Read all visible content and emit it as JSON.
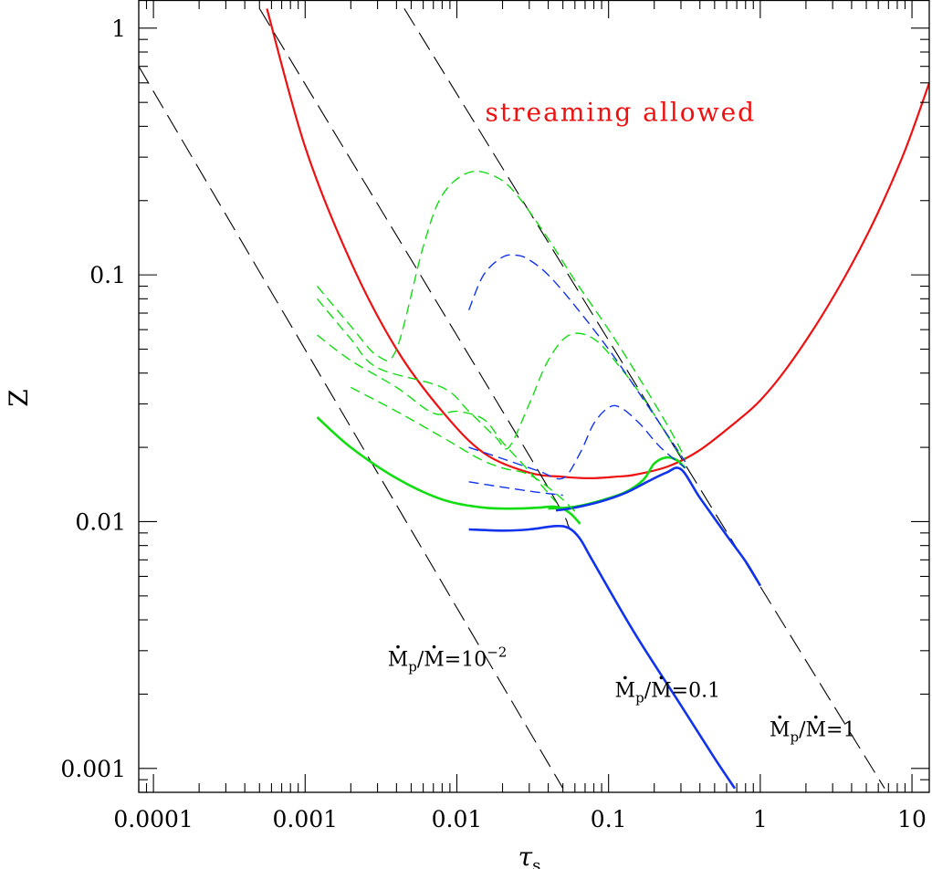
{
  "chart_data": {
    "type": "line",
    "title": "",
    "xlabel": "τ",
    "xlabel_sub": "s",
    "ylabel": "Z",
    "xscale": "log",
    "yscale": "log",
    "xlim": [
      8e-05,
      13
    ],
    "ylim": [
      0.0008,
      1.3
    ],
    "x_ticks": [
      0.0001,
      0.001,
      0.01,
      0.1,
      1,
      10
    ],
    "x_tick_labels": [
      "0.0001",
      "0.001",
      "0.01",
      "0.1",
      "1",
      "10"
    ],
    "y_ticks": [
      0.001,
      0.01,
      0.1,
      1
    ],
    "y_tick_labels": [
      "0.001",
      "0.01",
      "0.1",
      "1"
    ],
    "region_label": {
      "text": "streaming allowed",
      "x": 0.12,
      "y": 0.42,
      "color": "#ee1111"
    },
    "annotations": [
      {
        "id": "1e-2",
        "x": 0.0035,
        "y": 0.0026,
        "text": "=10",
        "sup": "−2",
        "p": "p"
      },
      {
        "id": "0-1",
        "x": 0.11,
        "y": 0.00195,
        "text": "=0.1",
        "sup": "",
        "p": "p"
      },
      {
        "id": "1",
        "x": 1.15,
        "y": 0.00135,
        "text": "=1",
        "sup": "",
        "p": "p"
      }
    ],
    "series": [
      {
        "name": "streaming-threshold",
        "color": "#ee1111",
        "style": "solid",
        "width": 2.2,
        "x": [
          0.00056,
          0.001,
          0.002,
          0.004,
          0.008,
          0.015,
          0.03,
          0.05,
          0.075,
          0.11,
          0.15,
          0.25,
          0.4,
          0.7,
          1,
          1.5,
          2.5,
          4,
          6,
          9,
          13
        ],
        "y": [
          1.2,
          0.33,
          0.113,
          0.05,
          0.028,
          0.019,
          0.0158,
          0.0152,
          0.015,
          0.0152,
          0.0155,
          0.0168,
          0.0195,
          0.0255,
          0.031,
          0.042,
          0.067,
          0.11,
          0.18,
          0.32,
          0.6
        ]
      },
      {
        "name": "Mp/M=1e-2-line",
        "color": "#000000",
        "style": "dash",
        "width": 1.1,
        "x": [
          8e-05,
          0.05
        ],
        "y": [
          0.7,
          0.00083
        ]
      },
      {
        "name": "Mp/M=0.1-line",
        "color": "#000000",
        "style": "dash",
        "width": 1.1,
        "x": [
          0.0005,
          0.03,
          0.055
        ],
        "y": [
          1.2,
          0.0185,
          0.0095
        ]
      },
      {
        "name": "Mp/M=1-line",
        "color": "#000000",
        "style": "dash",
        "width": 1.1,
        "x": [
          0.0045,
          6.6
        ],
        "y": [
          1.2,
          0.00083
        ]
      },
      {
        "name": "green-solid-low",
        "color": "#11dd11",
        "style": "solid",
        "width": 2.6,
        "x": [
          0.0012,
          0.002,
          0.004,
          0.008,
          0.015,
          0.025,
          0.035,
          0.045,
          0.055,
          0.065
        ],
        "y": [
          0.0265,
          0.02,
          0.015,
          0.0123,
          0.0114,
          0.0113,
          0.0114,
          0.0115,
          0.0109,
          0.0098
        ]
      },
      {
        "name": "green-solid-high",
        "color": "#11dd11",
        "style": "solid",
        "width": 2.6,
        "x": [
          0.04,
          0.06,
          0.09,
          0.13,
          0.17,
          0.2,
          0.24,
          0.28,
          0.32
        ],
        "y": [
          0.0113,
          0.0115,
          0.0122,
          0.0132,
          0.0148,
          0.0172,
          0.0182,
          0.0178,
          0.0165
        ]
      },
      {
        "name": "blue-solid-low",
        "color": "#1133ee",
        "style": "solid",
        "width": 2.6,
        "x": [
          0.012,
          0.02,
          0.03,
          0.045,
          0.055,
          0.065,
          0.08,
          0.15,
          0.3,
          0.5,
          0.68
        ],
        "y": [
          0.0093,
          0.0092,
          0.0093,
          0.0096,
          0.0094,
          0.0085,
          0.0068,
          0.0035,
          0.0018,
          0.0011,
          0.00083
        ]
      },
      {
        "name": "blue-solid-high",
        "color": "#1133ee",
        "style": "solid",
        "width": 2.6,
        "x": [
          0.045,
          0.06,
          0.09,
          0.13,
          0.18,
          0.24,
          0.3,
          0.4,
          0.6,
          0.8,
          1.0
        ],
        "y": [
          0.0111,
          0.0114,
          0.0121,
          0.0131,
          0.0145,
          0.0158,
          0.0163,
          0.0125,
          0.0088,
          0.0069,
          0.0055
        ]
      },
      {
        "name": "green-dash-peak-high",
        "color": "#11dd11",
        "style": "dash",
        "width": 1.4,
        "x": [
          0.0012,
          0.002,
          0.003,
          0.004,
          0.006,
          0.008,
          0.012,
          0.018,
          0.025,
          0.04,
          0.06,
          0.1,
          0.16,
          0.25,
          0.32
        ],
        "y": [
          0.09,
          0.062,
          0.047,
          0.05,
          0.13,
          0.21,
          0.26,
          0.25,
          0.21,
          0.14,
          0.095,
          0.06,
          0.038,
          0.024,
          0.018
        ]
      },
      {
        "name": "green-dash-peak-mid",
        "color": "#11dd11",
        "style": "dash",
        "width": 1.4,
        "x": [
          0.0012,
          0.002,
          0.003,
          0.008,
          0.012,
          0.018,
          0.022,
          0.03,
          0.04,
          0.055,
          0.08,
          0.12,
          0.18,
          0.26,
          0.32
        ],
        "y": [
          0.08,
          0.055,
          0.042,
          0.035,
          0.028,
          0.022,
          0.02,
          0.03,
          0.045,
          0.057,
          0.055,
          0.042,
          0.03,
          0.021,
          0.0175
        ]
      },
      {
        "name": "green-dash-low-a",
        "color": "#11dd11",
        "style": "dash",
        "width": 1.4,
        "x": [
          0.0012,
          0.002,
          0.004,
          0.007,
          0.01,
          0.015,
          0.02,
          0.03,
          0.045
        ],
        "y": [
          0.057,
          0.045,
          0.035,
          0.0275,
          0.028,
          0.026,
          0.021,
          0.016,
          0.012
        ]
      },
      {
        "name": "green-dash-low-b",
        "color": "#11dd11",
        "style": "dash",
        "width": 1.4,
        "x": [
          0.002,
          0.004,
          0.008,
          0.014,
          0.02,
          0.03,
          0.045,
          0.06
        ],
        "y": [
          0.035,
          0.028,
          0.022,
          0.018,
          0.0165,
          0.0155,
          0.013,
          0.011
        ]
      },
      {
        "name": "blue-dash-peak-high",
        "color": "#1133ee",
        "style": "dash",
        "width": 1.4,
        "x": [
          0.012,
          0.015,
          0.02,
          0.025,
          0.03,
          0.04,
          0.06,
          0.1,
          0.16,
          0.25,
          0.32
        ],
        "y": [
          0.072,
          0.1,
          0.118,
          0.12,
          0.115,
          0.1,
          0.075,
          0.05,
          0.033,
          0.022,
          0.0175
        ]
      },
      {
        "name": "blue-dash-peak-low",
        "color": "#1133ee",
        "style": "dash",
        "width": 1.4,
        "x": [
          0.012,
          0.02,
          0.035,
          0.05,
          0.065,
          0.08,
          0.1,
          0.12,
          0.16,
          0.22,
          0.32
        ],
        "y": [
          0.02,
          0.018,
          0.016,
          0.015,
          0.019,
          0.025,
          0.029,
          0.029,
          0.025,
          0.02,
          0.0165
        ]
      },
      {
        "name": "blue-dash-low",
        "color": "#1133ee",
        "style": "dash",
        "width": 1.4,
        "x": [
          0.012,
          0.02,
          0.03,
          0.04,
          0.05
        ],
        "y": [
          0.0145,
          0.0138,
          0.0133,
          0.013,
          0.0128
        ]
      }
    ]
  }
}
